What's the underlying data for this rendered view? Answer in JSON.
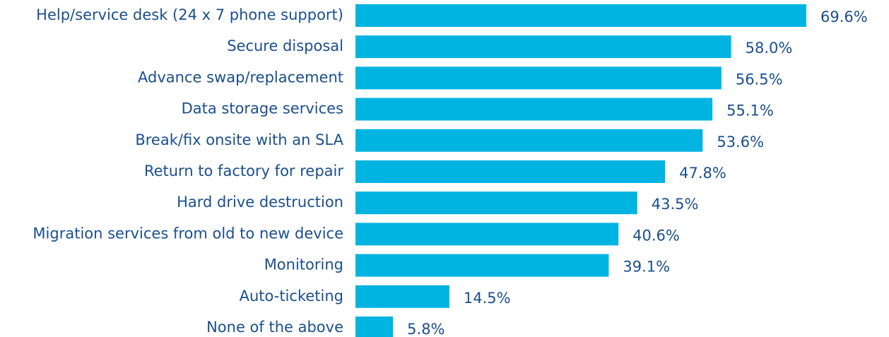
{
  "chart_data": {
    "type": "bar",
    "orientation": "horizontal",
    "color": "#00b4e1",
    "categories": [
      "Help/service desk (24 x 7 phone support)",
      "Secure disposal",
      "Advance swap/replacement",
      "Data storage services",
      "Break/fix onsite with an SLA",
      "Return to factory for repair",
      "Hard drive destruction",
      "Migration services from old to new device",
      "Monitoring",
      "Auto-ticketing",
      "None of the above"
    ],
    "values": [
      69.6,
      58.0,
      56.5,
      55.1,
      53.6,
      47.8,
      43.5,
      40.6,
      39.1,
      14.5,
      5.8
    ],
    "value_labels": [
      "69.6%",
      "58.0%",
      "56.5%",
      "55.1%",
      "53.6%",
      "47.8%",
      "43.5%",
      "40.6%",
      "39.1%",
      "14.5%",
      "5.8%"
    ]
  }
}
